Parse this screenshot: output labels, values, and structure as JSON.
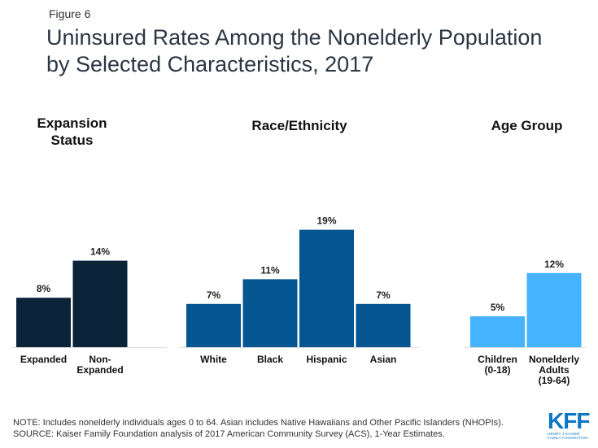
{
  "header": {
    "figure_label": "Figure 6",
    "title_line1": "Uninsured Rates Among the Nonelderly Population",
    "title_line2": "by Selected Characteristics, 2017"
  },
  "colors": {
    "corner_accent": "#0a76c4",
    "expansion": "#0b2338",
    "race": "#055591",
    "age": "#45b3ff",
    "baseline": "#dddddd"
  },
  "chart_data": {
    "type": "bar",
    "title": "Uninsured Rates Among the Nonelderly Population by Selected Characteristics, 2017",
    "xlabel": "",
    "ylabel": "",
    "unit": "%",
    "ylim": [
      0,
      20
    ],
    "grid": false,
    "groups": [
      {
        "name": "Expansion Status",
        "title_line1": "Expansion",
        "title_line2": "Status",
        "color_key": "expansion",
        "categories": [
          [
            "Expanded"
          ],
          [
            "Non-",
            "Expanded"
          ]
        ],
        "category_names": [
          "Expanded",
          "Non-Expanded"
        ],
        "values": [
          8,
          14
        ],
        "labels": [
          "8%",
          "14%"
        ]
      },
      {
        "name": "Race/Ethnicity",
        "title_line1": "Race/Ethnicity",
        "title_line2": "",
        "color_key": "race",
        "categories": [
          [
            "White"
          ],
          [
            "Black"
          ],
          [
            "Hispanic"
          ],
          [
            "Asian"
          ]
        ],
        "category_names": [
          "White",
          "Black",
          "Hispanic",
          "Asian"
        ],
        "values": [
          7,
          11,
          19,
          7
        ],
        "labels": [
          "7%",
          "11%",
          "19%",
          "7%"
        ]
      },
      {
        "name": "Age Group",
        "title_line1": "Age Group",
        "title_line2": "",
        "color_key": "age",
        "categories": [
          [
            "Children",
            "(0-18)"
          ],
          [
            "Nonelderly",
            "Adults",
            "(19-64)"
          ]
        ],
        "category_names": [
          "Children (0-18)",
          "Nonelderly Adults (19-64)"
        ],
        "values": [
          5,
          12
        ],
        "labels": [
          "5%",
          "12%"
        ]
      }
    ]
  },
  "footer": {
    "note": "NOTE: Includes nonelderly individuals ages 0 to 64. Asian includes Native Hawaiians and Other Pacific Islanders (NHOPIs).",
    "source": "SOURCE: Kaiser Family Foundation analysis of 2017 American Community Survey (ACS), 1-Year Estimates."
  },
  "logo": {
    "main": "KFF",
    "sub_line1": "HENRY J KAISER",
    "sub_line2": "FAMILY FOUNDATION"
  }
}
